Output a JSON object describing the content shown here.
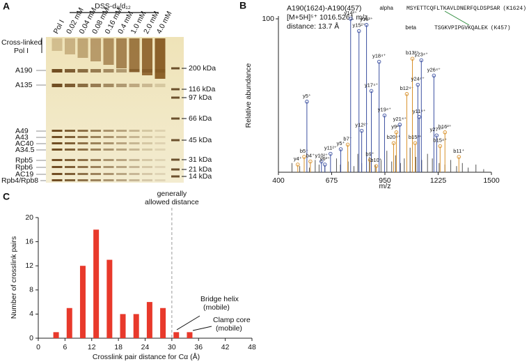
{
  "panel_a": {
    "panel": "A",
    "treatment_label": "DSS-d₀/d₁₂",
    "lanes": [
      "Pol I",
      "0.02 mM",
      "0.04 mM",
      "0.08 mM",
      "0.16 mM",
      "0.4 mM",
      "1.0 mM",
      "2.0 mM",
      "4.0 mM"
    ],
    "crosslinked_label": [
      "Cross-linked",
      "Pol I"
    ],
    "proteins": [
      "A190",
      "A135",
      "A49",
      "A43",
      "AC40",
      "A34.5",
      "Rpb5",
      "Rpb6",
      "AC19",
      "Rpb4/Rpb8"
    ],
    "markers": [
      "200 kDa",
      "116 kDa",
      "97 kDa",
      "66 kDa",
      "45 kDa",
      "31 kDa",
      "21 kDa",
      "14 kDa"
    ]
  },
  "chart_data": [
    {
      "type": "spectrum",
      "panel": "B",
      "annotation": [
        "A190(1624)-A190(457)",
        "[M+5H]⁵⁺ 1016.5261 m/z",
        "distance: 13.7 Å"
      ],
      "sequences": [
        {
          "name": "alpha",
          "sequence": "MSYETTCQFLTKAVLDNERFQLDSPSAR",
          "site": "(K1624)",
          "color": "#3a4fa0"
        },
        {
          "name": "beta",
          "sequence": "TSGKVPIPGVKQALEK",
          "site": "(K457)",
          "color": "#d8902a"
        }
      ],
      "x_label": "m/z",
      "y_label": "Relative abundance",
      "xlim": [
        400,
        1500
      ],
      "xticks": [
        400,
        675,
        950,
        1225,
        1500
      ],
      "ylim": [
        0,
        100
      ],
      "yticks": [
        100
      ],
      "peak_color": "#555555",
      "peaks": {
        "x": [
          470,
          510,
          560,
          590,
          610,
          640,
          700,
          720,
          760,
          790,
          810,
          830,
          870,
          900,
          930,
          960,
          985,
          1005,
          1030,
          1050,
          1080,
          1110,
          1140,
          1170,
          1195,
          1230,
          1260,
          1290,
          1320,
          1350,
          1380,
          1420,
          1460
        ],
        "values": [
          6,
          4,
          3,
          8,
          5,
          4,
          9,
          5,
          7,
          4,
          12,
          6,
          10,
          5,
          8,
          14,
          7,
          11,
          6,
          9,
          16,
          10,
          8,
          12,
          9,
          6,
          5,
          8,
          4,
          6,
          3,
          5,
          2
        ]
      },
      "annotated_peaks": [
        {
          "label": "y4⁺",
          "x": 500,
          "value": 5,
          "color": "#3aa645",
          "marker_color": "#d8902a"
        },
        {
          "label": "b5⁺",
          "x": 533,
          "value": 10,
          "color": "#3aa645",
          "marker_color": "#d8902a"
        },
        {
          "label": "y5⁺",
          "x": 547,
          "value": 46,
          "color": "#3aa645",
          "marker_color": "#3a4fa0"
        },
        {
          "label": "b4⁺",
          "x": 565,
          "value": 7,
          "color": "#3aa645",
          "marker_color": "#d8902a"
        },
        {
          "label": "y10²⁺",
          "x": 622,
          "value": 7,
          "color": "#3aa645",
          "marker_color": "#3a4fa0"
        },
        {
          "label": "y6²⁺",
          "x": 640,
          "value": 5,
          "color": "#3aa645",
          "marker_color": "#3a4fa0"
        },
        {
          "label": "y11²⁺",
          "x": 669,
          "value": 12,
          "color": "#3aa645",
          "marker_color": "#3a4fa0"
        },
        {
          "label": "y5⁺",
          "x": 722,
          "value": 15,
          "color": "#3aa645",
          "marker_color": "#3a4fa0"
        },
        {
          "label": "b7⁺",
          "x": 758,
          "value": 18,
          "color": "#3aa645",
          "marker_color": "#d8902a"
        },
        {
          "label": "y14²⁺",
          "x": 773,
          "value": 100,
          "color": "#3aa645",
          "marker_color": "#3a4fa0"
        },
        {
          "label": "y15²⁺",
          "x": 816,
          "value": 92,
          "color": "#3aa645",
          "marker_color": "#3a4fa0"
        },
        {
          "label": "y12²⁺",
          "x": 830,
          "value": 27,
          "color": "#3aa645",
          "marker_color": "#3a4fa0"
        },
        {
          "label": "y16²⁺",
          "x": 855,
          "value": 96,
          "color": "#3aa645",
          "marker_color": "#3a4fa0"
        },
        {
          "label": "b9⁺",
          "x": 873,
          "value": 8,
          "color": "#3aa645",
          "marker_color": "#d8902a"
        },
        {
          "label": "y17⁴⁺",
          "x": 880,
          "value": 53,
          "color": "#e8392b",
          "marker_color": "#3a4fa0"
        },
        {
          "label": "b10⁺",
          "x": 905,
          "value": 4,
          "color": "#3aa645",
          "marker_color": "#d8902a"
        },
        {
          "label": "y18⁴⁺",
          "x": 920,
          "value": 72,
          "color": "#e8392b",
          "marker_color": "#3a4fa0"
        },
        {
          "label": "y19⁴⁺",
          "x": 948,
          "value": 37,
          "color": "#e8392b",
          "marker_color": "#3a4fa0"
        },
        {
          "label": "b20⁴⁺",
          "x": 995,
          "value": 19,
          "color": "#e8392b",
          "marker_color": "#d8902a"
        },
        {
          "label": "y9²⁺",
          "x": 1009,
          "value": 26,
          "color": "#e8392b",
          "marker_color": "#d8902a"
        },
        {
          "label": "y21⁴⁺",
          "x": 1027,
          "value": 31,
          "color": "#e8392b",
          "marker_color": "#3a4fa0"
        },
        {
          "label": "b12⁴⁺",
          "x": 1063,
          "value": 51,
          "color": "#e8392b",
          "marker_color": "#d8902a"
        },
        {
          "label": "b13²⁺",
          "x": 1092,
          "value": 74,
          "color": "#e8392b",
          "marker_color": "#d8902a"
        },
        {
          "label": "b15²⁺",
          "x": 1106,
          "value": 19,
          "color": "#e8392b",
          "marker_color": "#d8902a"
        },
        {
          "label": "y24⁴⁺",
          "x": 1120,
          "value": 57,
          "color": "#e8392b",
          "marker_color": "#3a4fa0"
        },
        {
          "label": "y11⁴⁺",
          "x": 1127,
          "value": 36,
          "color": "#e8392b",
          "marker_color": "#3a4fa0"
        },
        {
          "label": "y23⁴⁺",
          "x": 1138,
          "value": 73,
          "color": "#e8392b",
          "marker_color": "#3a4fa0"
        },
        {
          "label": "y26⁴⁺",
          "x": 1203,
          "value": 63,
          "color": "#e8392b",
          "marker_color": "#3a4fa0"
        },
        {
          "label": "y27⁴⁺",
          "x": 1217,
          "value": 24,
          "color": "#e8392b",
          "marker_color": "#3a4fa0"
        },
        {
          "label": "b15⁴⁺",
          "x": 1235,
          "value": 17,
          "color": "#e8392b",
          "marker_color": "#d8902a"
        },
        {
          "label": "b16²⁺",
          "x": 1260,
          "value": 26,
          "color": "#e8392b",
          "marker_color": "#d8902a"
        },
        {
          "label": "b11⁺",
          "x": 1332,
          "value": 10,
          "color": "#3aa645",
          "marker_color": "#d8902a"
        }
      ]
    },
    {
      "type": "bar",
      "panel": "C",
      "x_label": "Crosslink pair distance for Cα (Å)",
      "y_label": "Number of crosslink pairs",
      "x": [
        4,
        7,
        10,
        13,
        16,
        19,
        22,
        25,
        28,
        31,
        34
      ],
      "values": [
        1,
        5,
        12,
        18,
        13,
        4,
        4,
        6,
        5,
        1,
        1
      ],
      "color": "#e8392b",
      "xlim": [
        0,
        48
      ],
      "xticks": [
        0,
        6,
        12,
        18,
        24,
        30,
        36,
        42,
        48
      ],
      "ylim": [
        0,
        20
      ],
      "yticks": [
        0,
        4,
        8,
        12,
        16,
        20
      ],
      "threshold": {
        "x": 30,
        "label": [
          "generally",
          "allowed distance"
        ],
        "color": "#999999"
      },
      "annotations": [
        [
          "Bridge helix",
          "(mobile)"
        ],
        [
          "Clamp core",
          "(mobile)"
        ]
      ]
    }
  ]
}
